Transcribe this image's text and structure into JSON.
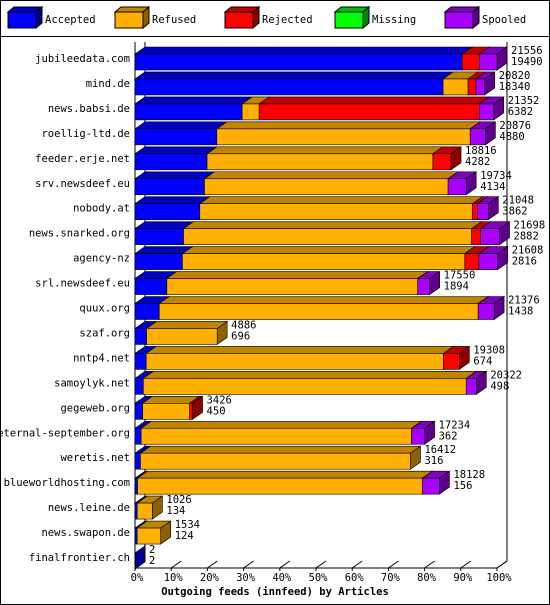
{
  "chart_data": {
    "type": "stacked-barh-3d",
    "title": "Outgoing feeds (innfeed) by Articles",
    "categories": [
      "jubileedata.com",
      "mind.de",
      "news.babsi.de",
      "roellig-ltd.de",
      "feeder.erje.net",
      "srv.newsdeef.eu",
      "nobody.at",
      "news.snarked.org",
      "agency-nz",
      "srl.newsdeef.eu",
      "quux.org",
      "szaf.org",
      "nntp4.net",
      "samoylyk.net",
      "gegeweb.org",
      "eternal-september.org",
      "weretis.net",
      "blueworldhosting.com",
      "news.leine.de",
      "news.swapon.de",
      "finalfrontier.ch"
    ],
    "offered": [
      21556,
      20820,
      21352,
      20876,
      18816,
      19734,
      21048,
      21698,
      21608,
      17550,
      21376,
      4886,
      19308,
      20322,
      3426,
      17234,
      16412,
      18128,
      1026,
      1534,
      2
    ],
    "accepted": [
      19490,
      18340,
      6382,
      4880,
      4282,
      4134,
      3862,
      2882,
      2816,
      1894,
      1438,
      696,
      674,
      498,
      450,
      362,
      316,
      156,
      134,
      124,
      2
    ],
    "series": [
      {
        "name": "Accepted",
        "color": "#0000ff",
        "values": [
          90.4,
          85.1,
          29.6,
          22.6,
          19.9,
          19.2,
          17.9,
          13.4,
          13.1,
          8.8,
          6.7,
          3.2,
          3.1,
          2.3,
          2.1,
          1.7,
          1.5,
          0.7,
          0.6,
          0.6,
          0.01
        ]
      },
      {
        "name": "Refused",
        "color": "#ffb000",
        "values": [
          0,
          6.9,
          4.7,
          70.0,
          62.4,
          67.3,
          75.3,
          79.6,
          78.0,
          69.3,
          88.1,
          19.5,
          82.1,
          89.2,
          13.0,
          74.7,
          74.6,
          78.7,
          4.2,
          6.5,
          0
        ]
      },
      {
        "name": "Rejected",
        "color": "#ff0000",
        "values": [
          4.7,
          2.2,
          60.8,
          0,
          5.0,
          0,
          1.4,
          2.5,
          3.9,
          0,
          0,
          0,
          4.4,
          0,
          0.8,
          0,
          0,
          0,
          0,
          0,
          0
        ]
      },
      {
        "name": "Missing",
        "color": "#00ff00",
        "values": [
          0,
          0,
          0,
          0,
          0,
          0,
          0,
          0,
          0,
          0,
          0,
          0,
          0,
          0,
          0,
          0,
          0,
          0,
          0,
          0,
          0
        ]
      },
      {
        "name": "Spooled",
        "color": "#aa00ff",
        "values": [
          4.9,
          2.4,
          4.0,
          4.2,
          0,
          5.0,
          3.0,
          5.2,
          5.2,
          3.3,
          4.4,
          0,
          0,
          2.8,
          0,
          3.6,
          0,
          4.7,
          0,
          0,
          0
        ]
      }
    ],
    "xlim": [
      0,
      100
    ],
    "xticks": [
      {
        "value": 0,
        "label": "0%"
      },
      {
        "value": 10,
        "label": "10%"
      },
      {
        "value": 20,
        "label": "20%"
      },
      {
        "value": 30,
        "label": "30%"
      },
      {
        "value": 40,
        "label": "40%"
      },
      {
        "value": 50,
        "label": "50%"
      },
      {
        "value": 60,
        "label": "60%"
      },
      {
        "value": 70,
        "label": "70%"
      },
      {
        "value": 80,
        "label": "80%"
      },
      {
        "value": 90,
        "label": "90%"
      },
      {
        "value": 100,
        "label": "100%"
      }
    ]
  }
}
